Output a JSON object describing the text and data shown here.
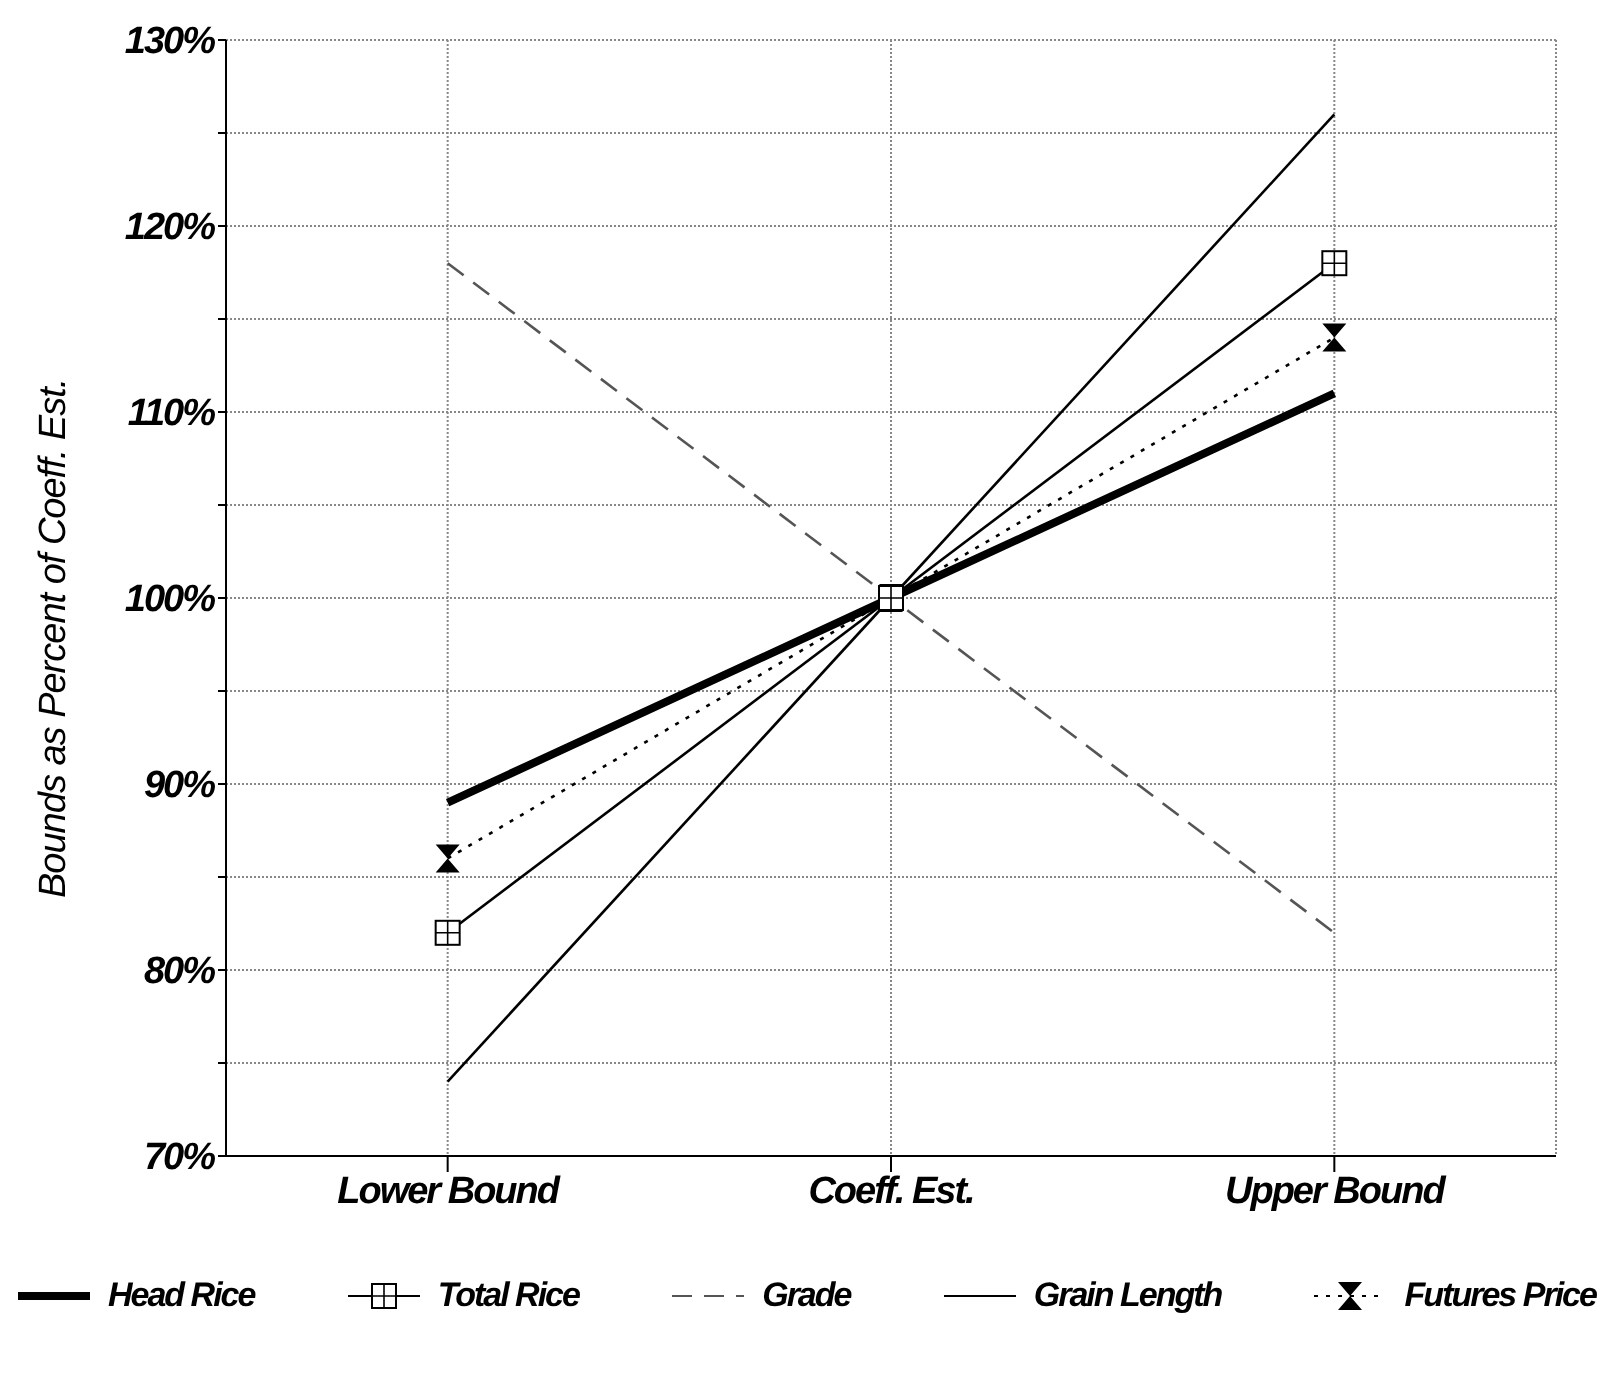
{
  "chart_data": {
    "type": "line",
    "ylabel": "Bounds as Percent of Coeff. Est.",
    "categories": [
      "Lower Bound",
      "Coeff. Est.",
      "Upper Bound"
    ],
    "series": [
      {
        "name": "Head Rice",
        "color": "#000000",
        "values": [
          89,
          100,
          111
        ],
        "line_style": "solid",
        "marker": "none"
      },
      {
        "name": "Total Rice",
        "color": "#000000",
        "values": [
          82,
          100,
          118
        ],
        "line_style": "solid",
        "marker": "square"
      },
      {
        "name": "Grade",
        "color": "#555555",
        "values": [
          118,
          100,
          82
        ],
        "line_style": "dashed",
        "marker": "none"
      },
      {
        "name": "Grain Length",
        "color": "#000000",
        "values": [
          74,
          100,
          126
        ],
        "line_style": "solid",
        "marker": "none"
      },
      {
        "name": "Futures Price",
        "color": "#000000",
        "values": [
          86,
          100,
          114
        ],
        "line_style": "dotted",
        "marker": "triangle"
      }
    ],
    "ylim": [
      70,
      130
    ],
    "yticks": [
      {
        "value": 70,
        "label": "70%"
      },
      {
        "value": 75,
        "label": null
      },
      {
        "value": 80,
        "label": "80%"
      },
      {
        "value": 85,
        "label": null
      },
      {
        "value": 90,
        "label": "90%"
      },
      {
        "value": 95,
        "label": null
      },
      {
        "value": 100,
        "label": "100%"
      },
      {
        "value": 105,
        "label": null
      },
      {
        "value": 110,
        "label": "110%"
      },
      {
        "value": 115,
        "label": null
      },
      {
        "value": 120,
        "label": "120%"
      },
      {
        "value": 125,
        "label": null
      },
      {
        "value": 130,
        "label": "130%"
      }
    ],
    "grid": true,
    "legend": "bottom"
  }
}
